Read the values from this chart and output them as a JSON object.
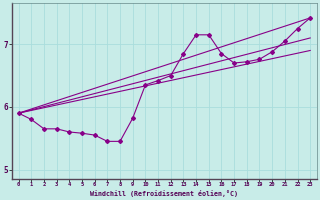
{
  "xlabel": "Windchill (Refroidissement éolien,°C)",
  "bg_color": "#c8ece8",
  "line_color": "#880088",
  "grid_color": "#aadddd",
  "x_data": [
    0,
    1,
    2,
    3,
    4,
    5,
    6,
    7,
    8,
    9,
    10,
    11,
    12,
    13,
    14,
    15,
    16,
    17,
    18,
    19,
    20,
    21,
    22,
    23
  ],
  "y_main": [
    5.9,
    5.8,
    5.65,
    5.65,
    5.6,
    5.58,
    5.55,
    5.45,
    5.45,
    5.82,
    6.35,
    6.42,
    6.5,
    6.85,
    7.15,
    7.15,
    6.85,
    6.7,
    6.72,
    6.76,
    6.88,
    7.05,
    7.25,
    7.42
  ],
  "trend_x": [
    0,
    23
  ],
  "trend1_y": [
    5.9,
    7.42
  ],
  "trend2_y": [
    5.9,
    7.1
  ],
  "trend3_y": [
    5.9,
    6.9
  ],
  "ylim": [
    4.85,
    7.65
  ],
  "xlim": [
    -0.5,
    23.5
  ],
  "yticks": [
    5,
    6,
    7
  ],
  "xticks": [
    0,
    1,
    2,
    3,
    4,
    5,
    6,
    7,
    8,
    9,
    10,
    11,
    12,
    13,
    14,
    15,
    16,
    17,
    18,
    19,
    20,
    21,
    22,
    23
  ]
}
